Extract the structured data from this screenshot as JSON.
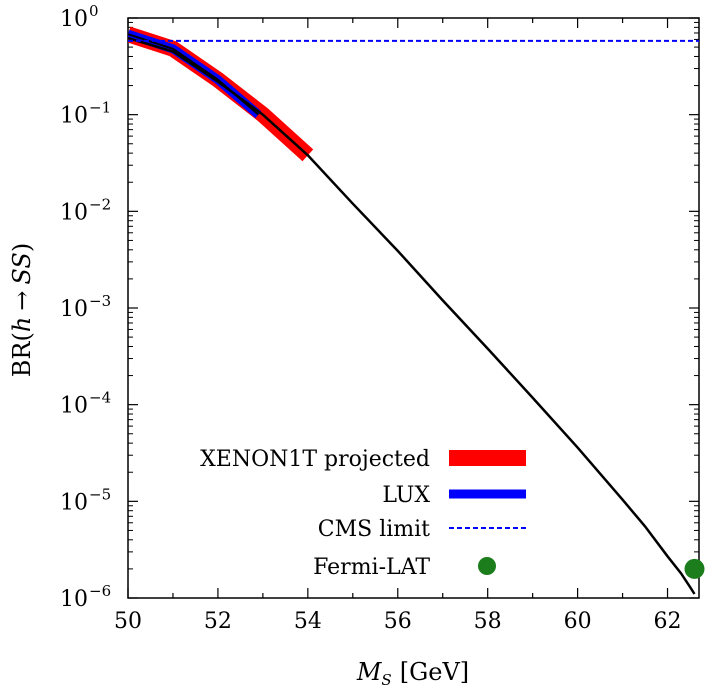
{
  "chart_data": {
    "type": "line",
    "title": "",
    "xlabel": {
      "main": "M",
      "sub": "S",
      "unit": "[GeV]"
    },
    "ylabel": {
      "pre": "BR(",
      "h": "h",
      "arrow": "→",
      "ss": "SS",
      "post": ")"
    },
    "x_ticks": [
      50,
      52,
      54,
      56,
      58,
      60,
      62
    ],
    "y_ticks": [
      {
        "value": 1.0,
        "base": "10",
        "exp": "0"
      },
      {
        "value": 0.1,
        "base": "10",
        "exp": "−1"
      },
      {
        "value": 0.01,
        "base": "10",
        "exp": "−2"
      },
      {
        "value": 0.001,
        "base": "10",
        "exp": "−3"
      },
      {
        "value": 0.0001,
        "base": "10",
        "exp": "−4"
      },
      {
        "value": 1e-05,
        "base": "10",
        "exp": "−5"
      },
      {
        "value": 1e-06,
        "base": "10",
        "exp": "−6"
      }
    ],
    "xlim": [
      50,
      62.7
    ],
    "ylim": [
      1e-06,
      1
    ],
    "yscale": "log",
    "grid": false,
    "legend_placement": "bottom-left",
    "series": [
      {
        "name": "",
        "style": "black-line",
        "color": "#000000",
        "x": [
          50,
          51,
          52,
          53,
          54,
          55,
          56,
          57,
          58,
          59,
          60,
          61,
          61.5,
          62,
          62.3,
          62.5,
          62.6
        ],
        "y": [
          0.62,
          0.45,
          0.22,
          0.1,
          0.038,
          0.012,
          0.0039,
          0.0012,
          0.00038,
          0.000118,
          3.6e-05,
          1.04e-05,
          5.5e-06,
          2.7e-06,
          1.8e-06,
          1.3e-06,
          1.1e-06
        ]
      },
      {
        "name": "XENON1T projected",
        "style": "band",
        "color": "#ff0000",
        "x": [
          50,
          51,
          52,
          53,
          54
        ],
        "y": [
          0.68,
          0.48,
          0.23,
          0.1,
          0.038
        ]
      },
      {
        "name": "LUX",
        "style": "band",
        "color": "#0000ff",
        "x": [
          50,
          51,
          52,
          52.9
        ],
        "y": [
          0.68,
          0.48,
          0.23,
          0.1
        ]
      },
      {
        "name": "CMS limit",
        "style": "dashed",
        "color": "#0000ff",
        "x": [
          50,
          62.7
        ],
        "y": [
          0.58,
          0.58
        ]
      },
      {
        "name": "Fermi-LAT",
        "style": "point",
        "color": "#1b7d1b",
        "x": [
          62.6
        ],
        "y": [
          2e-06
        ]
      }
    ]
  }
}
